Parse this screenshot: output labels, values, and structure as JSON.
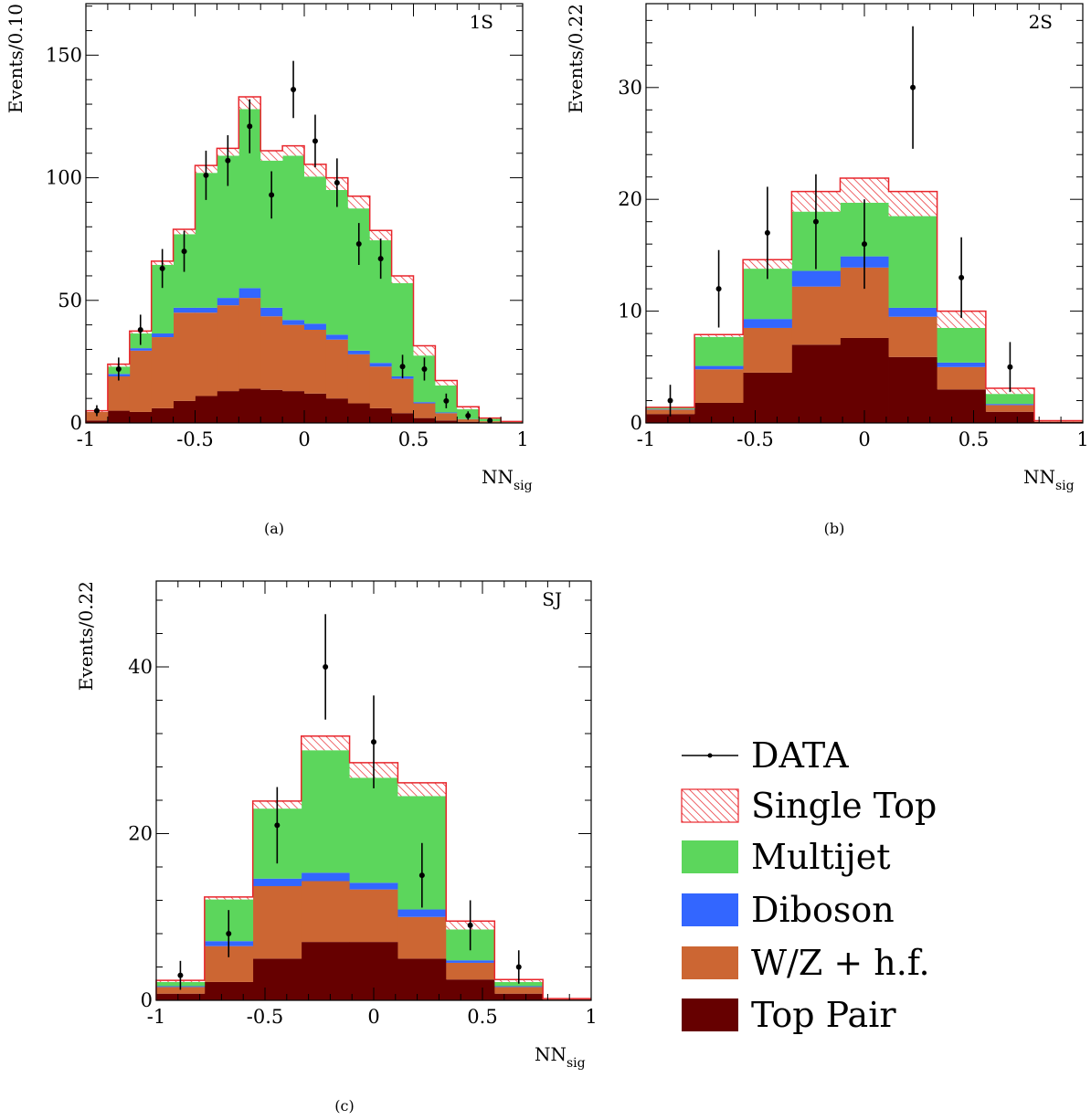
{
  "legend": {
    "items": [
      {
        "key": "data",
        "label": "DATA"
      },
      {
        "key": "single_top",
        "label": "Single Top"
      },
      {
        "key": "multijet",
        "label": "Multijet"
      },
      {
        "key": "diboson",
        "label": "Diboson"
      },
      {
        "key": "wz_hf",
        "label": "W/Z + h.f."
      },
      {
        "key": "top_pair",
        "label": "Top Pair"
      }
    ]
  },
  "colors": {
    "top_pair": "#660000",
    "wz_hf": "#cc6633",
    "diboson": "#3366ff",
    "multijet": "#5cd65c",
    "single_top": "#e8252b",
    "data": "#000000"
  },
  "chart_data": [
    {
      "type": "bar",
      "stacked": true,
      "panel_tag": "1S",
      "caption": "(a)",
      "ylabel": "Events/0.10",
      "xlabel_main": "NN",
      "xlabel_sub": "sig",
      "xlim": [
        -1,
        1
      ],
      "ylim": [
        0,
        171
      ],
      "xticks": [
        -1,
        -0.5,
        0,
        0.5,
        1
      ],
      "xtick_labels": [
        "-1",
        "-0.5",
        "0",
        "0.5",
        "1"
      ],
      "yticks": [
        0,
        50,
        100,
        150
      ],
      "ytick_labels": [
        "0",
        "50",
        "100",
        "150"
      ],
      "bin_edges": [
        -1,
        -0.9,
        -0.8,
        -0.7,
        -0.6,
        -0.5,
        -0.4,
        -0.3,
        -0.2,
        -0.1,
        0,
        0.1,
        0.2,
        0.3,
        0.4,
        0.5,
        0.6,
        0.7,
        0.8,
        0.9,
        1
      ],
      "series": [
        {
          "name": "Top Pair",
          "key": "top_pair",
          "values": [
            1,
            5,
            4.5,
            6,
            9,
            11,
            13,
            14,
            13.5,
            13,
            12,
            10,
            8,
            6,
            4,
            2,
            1,
            0.5,
            0.2,
            0.1
          ]
        },
        {
          "name": "W/Z + h.f.",
          "key": "wz_hf",
          "values": [
            3.5,
            14,
            25,
            29,
            36,
            34,
            35,
            37,
            30,
            27,
            26,
            24,
            20,
            17,
            14,
            6,
            3,
            1,
            0.5,
            0.2
          ]
        },
        {
          "name": "Diboson",
          "key": "diboson",
          "values": [
            0,
            1,
            1,
            1.5,
            2,
            2,
            3,
            4,
            3.5,
            2,
            2.5,
            2,
            1.5,
            1.5,
            1,
            0.5,
            0.3,
            0.1,
            0,
            0
          ]
        },
        {
          "name": "Multijet",
          "key": "multijet",
          "values": [
            0,
            3,
            6,
            28,
            30,
            55,
            58,
            73,
            60,
            67,
            60,
            59,
            58,
            50,
            38,
            19,
            11,
            4,
            1,
            0.2
          ]
        },
        {
          "name": "Single Top",
          "key": "single_top",
          "values": [
            0.5,
            1,
            1,
            1.5,
            2,
            3,
            3,
            5,
            4,
            4,
            5,
            5,
            5,
            4,
            3,
            4,
            2,
            1,
            0.3,
            0.1
          ]
        }
      ],
      "data_points": {
        "x": [
          -0.95,
          -0.85,
          -0.75,
          -0.65,
          -0.55,
          -0.45,
          -0.35,
          -0.25,
          -0.15,
          -0.05,
          0.05,
          0.15,
          0.25,
          0.35,
          0.45,
          0.55,
          0.65,
          0.75,
          0.85
        ],
        "y": [
          5,
          22,
          38,
          63,
          70,
          101,
          107,
          121,
          93,
          136,
          115,
          98,
          73,
          67,
          23,
          22,
          9,
          3,
          1
        ]
      }
    },
    {
      "type": "bar",
      "stacked": true,
      "panel_tag": "2S",
      "caption": "(b)",
      "ylabel": "Events/0.22",
      "xlabel_main": "NN",
      "xlabel_sub": "sig",
      "xlim": [
        -1,
        1
      ],
      "ylim": [
        0,
        37.5
      ],
      "xticks": [
        -1,
        -0.5,
        0,
        0.5,
        1
      ],
      "xtick_labels": [
        "-1",
        "-0.5",
        "0",
        "0.5",
        "1"
      ],
      "yticks": [
        0,
        10,
        20,
        30
      ],
      "ytick_labels": [
        "0",
        "10",
        "20",
        "30"
      ],
      "bin_edges": [
        -1,
        -0.778,
        -0.556,
        -0.333,
        -0.111,
        0.111,
        0.333,
        0.556,
        0.778,
        1
      ],
      "series": [
        {
          "name": "Top Pair",
          "key": "top_pair",
          "values": [
            0.8,
            1.8,
            4.5,
            7,
            7.6,
            5.9,
            3,
            1,
            0.1
          ]
        },
        {
          "name": "W/Z + h.f.",
          "key": "wz_hf",
          "values": [
            0.4,
            3,
            4,
            5.2,
            6.3,
            3.6,
            2,
            0.6,
            0.05
          ]
        },
        {
          "name": "Diboson",
          "key": "diboson",
          "values": [
            0.05,
            0.3,
            0.8,
            1.4,
            1,
            0.8,
            0.4,
            0.1,
            0
          ]
        },
        {
          "name": "Multijet",
          "key": "multijet",
          "values": [
            0.1,
            2.6,
            4.5,
            5.3,
            4.8,
            8.2,
            3.1,
            0.9,
            0
          ]
        },
        {
          "name": "Single Top",
          "key": "single_top",
          "values": [
            0.05,
            0.2,
            0.8,
            1.8,
            2.2,
            2.2,
            1.5,
            0.5,
            0.05
          ]
        }
      ],
      "data_points": {
        "x": [
          -0.889,
          -0.667,
          -0.444,
          -0.222,
          0.0,
          0.222,
          0.444,
          0.667
        ],
        "y": [
          2,
          12,
          17,
          18,
          16,
          30,
          13,
          5
        ]
      }
    },
    {
      "type": "bar",
      "stacked": true,
      "panel_tag": "SJ",
      "caption": "(c)",
      "ylabel": "Events/0.22",
      "xlabel_main": "NN",
      "xlabel_sub": "sig",
      "xlim": [
        -1,
        1
      ],
      "ylim": [
        0,
        50.3
      ],
      "xticks": [
        -1,
        -0.5,
        0,
        0.5,
        1
      ],
      "xtick_labels": [
        "-1",
        "-0.5",
        "0",
        "0.5",
        "1"
      ],
      "yticks": [
        0,
        20,
        40
      ],
      "ytick_labels": [
        "0",
        "20",
        "40"
      ],
      "bin_edges": [
        -1,
        -0.778,
        -0.556,
        -0.333,
        -0.111,
        0.111,
        0.333,
        0.556,
        0.778,
        1
      ],
      "series": [
        {
          "name": "Top Pair",
          "key": "top_pair",
          "values": [
            0.8,
            2.2,
            5,
            7,
            7,
            5,
            2.5,
            0.8,
            0.1
          ]
        },
        {
          "name": "W/Z + h.f.",
          "key": "wz_hf",
          "values": [
            0.8,
            4.3,
            8.7,
            7.3,
            6.3,
            5,
            2,
            0.8,
            0.05
          ]
        },
        {
          "name": "Diboson",
          "key": "diboson",
          "values": [
            0.1,
            0.6,
            0.9,
            1,
            0.8,
            0.9,
            0.3,
            0.1,
            0
          ]
        },
        {
          "name": "Multijet",
          "key": "multijet",
          "values": [
            0.5,
            5,
            8.4,
            14.7,
            12.6,
            13.6,
            3.7,
            0.5,
            0
          ]
        },
        {
          "name": "Single Top",
          "key": "single_top",
          "values": [
            0.2,
            0.3,
            0.9,
            1.7,
            1.8,
            1.6,
            1,
            0.3,
            0.05
          ]
        }
      ],
      "data_points": {
        "x": [
          -0.889,
          -0.667,
          -0.444,
          -0.222,
          0.0,
          0.222,
          0.444,
          0.667
        ],
        "y": [
          3,
          8,
          21,
          40,
          31,
          15,
          9,
          4
        ]
      }
    }
  ]
}
